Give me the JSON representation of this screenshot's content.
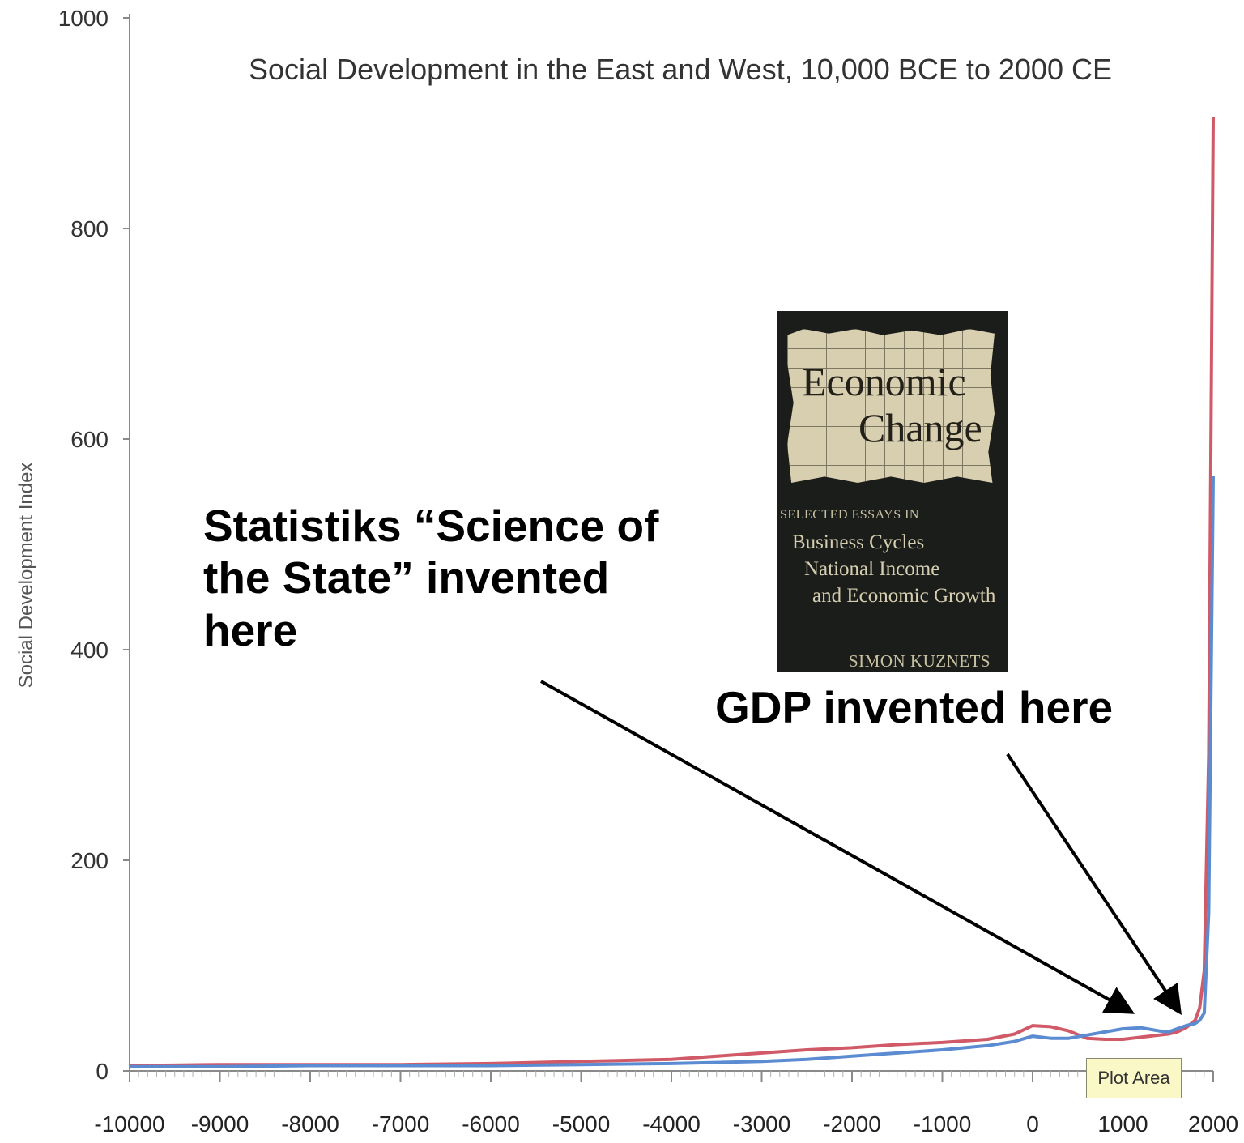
{
  "chart_data": {
    "type": "line",
    "title": "Social Development in the East and West, 10,000 BCE to 2000 CE",
    "xlabel": "",
    "ylabel": "Social Development Index",
    "xlim": [
      -10000,
      2000
    ],
    "ylim": [
      0,
      1000
    ],
    "xticks": [
      -10000,
      -9000,
      -8000,
      -7000,
      -6000,
      -5000,
      -4000,
      -3000,
      -2000,
      -1000,
      0,
      1000,
      2000
    ],
    "yticks": [
      0,
      200,
      400,
      600,
      800,
      1000
    ],
    "grid": false,
    "legend": "none",
    "series": [
      {
        "color": "#d05a68",
        "x": [
          -10000,
          -9000,
          -8000,
          -7000,
          -6000,
          -5000,
          -4000,
          -3000,
          -2500,
          -2000,
          -1500,
          -1000,
          -500,
          -200,
          0,
          200,
          400,
          600,
          800,
          1000,
          1200,
          1400,
          1500,
          1600,
          1700,
          1800,
          1850,
          1900,
          1950,
          2000
        ],
        "values": [
          5,
          6,
          6,
          6,
          7,
          9,
          11,
          17,
          20,
          22,
          25,
          27,
          30,
          35,
          43,
          42,
          38,
          31,
          30,
          30,
          32,
          34,
          35,
          37,
          41,
          48,
          60,
          95,
          300,
          906
        ]
      },
      {
        "color": "#5b8bd0",
        "x": [
          -10000,
          -9000,
          -8000,
          -7000,
          -6000,
          -5000,
          -4000,
          -3000,
          -2500,
          -2000,
          -1500,
          -1000,
          -500,
          -200,
          0,
          200,
          400,
          600,
          800,
          1000,
          1200,
          1400,
          1500,
          1600,
          1700,
          1800,
          1850,
          1900,
          1950,
          2000
        ],
        "values": [
          4,
          4,
          5,
          5,
          5,
          6,
          7,
          9,
          11,
          14,
          17,
          20,
          24,
          28,
          33,
          31,
          31,
          34,
          37,
          40,
          41,
          38,
          37,
          40,
          43,
          45,
          48,
          55,
          150,
          565
        ]
      }
    ]
  },
  "annotations": {
    "statistiks": "Statistiks “Science of the State” invented here",
    "gdp": "GDP invented here"
  },
  "book": {
    "title_line_1": "Economic",
    "title_line_2": "Change",
    "subtitle": "SELECTED ESSAYS IN",
    "line_1": "Business Cycles",
    "line_2": "National Income",
    "line_3": "and Economic Growth",
    "author": "SIMON KUZNETS"
  },
  "tooltip": {
    "label": "Plot Area"
  }
}
